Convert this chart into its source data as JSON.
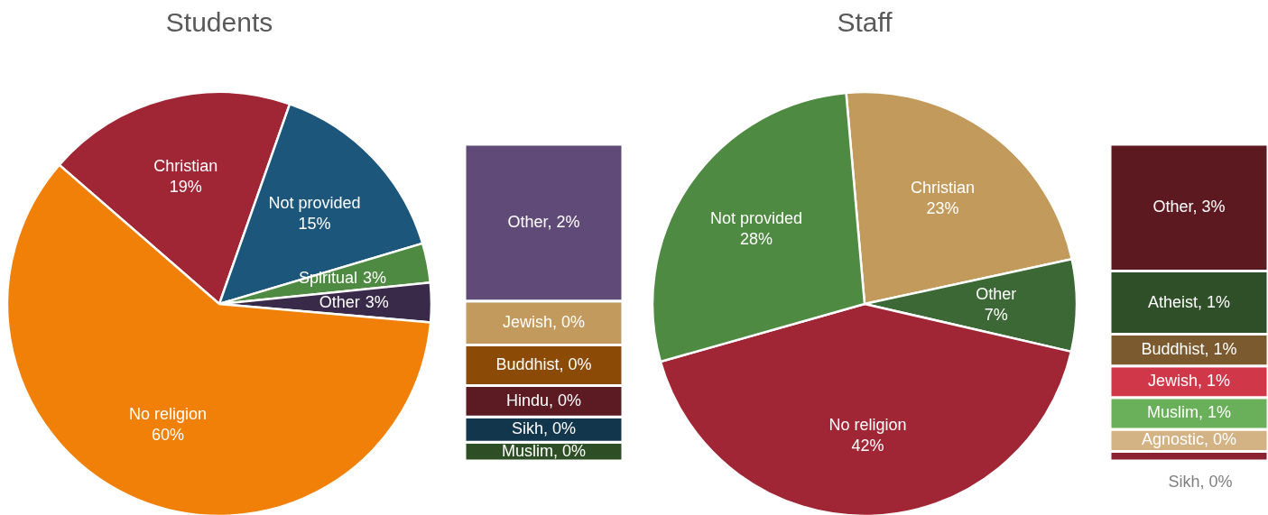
{
  "chart_data": [
    {
      "type": "pie",
      "title": "Students",
      "categories": [
        "Christian",
        "Not provided",
        "Spiritual",
        "Other",
        "No religion"
      ],
      "values": [
        19,
        15,
        3,
        3,
        60
      ],
      "colors": [
        "#a02535",
        "#1c567a",
        "#4e8a41",
        "#3a2a4a",
        "#f08008"
      ],
      "value_labels": [
        "19%",
        "15%",
        "3%",
        "3%",
        "60%"
      ]
    },
    {
      "type": "bar",
      "stacked": true,
      "categories": [
        null
      ],
      "series": [
        {
          "color": "#2e4f25",
          "values": [
            0.18
          ],
          "value_labels": [
            "Muslim, 0%"
          ]
        },
        {
          "color": "#12364c",
          "values": [
            0.24
          ],
          "value_labels": [
            "Sikh, 0%"
          ]
        },
        {
          "color": "#5c1a22",
          "values": [
            0.3
          ],
          "value_labels": [
            "Hindu, 0%"
          ]
        },
        {
          "color": "#8b4a06",
          "values": [
            0.39
          ],
          "value_labels": [
            "Buddhist, 0%"
          ]
        },
        {
          "color": "#c39a5e",
          "values": [
            0.42
          ],
          "value_labels": [
            "Jewish, 0%"
          ]
        },
        {
          "color": "#604a78",
          "values": [
            1.5
          ],
          "value_labels": [
            "Other, 2%"
          ]
        }
      ]
    },
    {
      "type": "pie",
      "title": "Staff",
      "categories": [
        "Christian",
        "Other",
        "No religion",
        "Not provided"
      ],
      "values": [
        23,
        7,
        42,
        28
      ],
      "colors": [
        "#c29a5b",
        "#3b6834",
        "#a02535",
        "#4e8a41"
      ],
      "value_labels": [
        "23%",
        "7%",
        "42%",
        "28%"
      ]
    },
    {
      "type": "bar",
      "stacked": true,
      "categories": [
        null
      ],
      "series": [
        {
          "color": "#8b2232",
          "values": [
            0.21
          ],
          "value_labels": [
            "Sikh, 0%"
          ]
        },
        {
          "color": "#d3b384",
          "values": [
            0.49
          ],
          "value_labels": [
            "Agnostic, 0%"
          ]
        },
        {
          "color": "#6aaf5a",
          "values": [
            0.7
          ],
          "value_labels": [
            "Muslim, 1%"
          ]
        },
        {
          "color": "#d0384a",
          "values": [
            0.7
          ],
          "value_labels": [
            "Jewish, 1%"
          ]
        },
        {
          "color": "#7a5a2e",
          "values": [
            0.7
          ],
          "value_labels": [
            "Buddhist, 1%"
          ]
        },
        {
          "color": "#2e4f28",
          "values": [
            1.4
          ],
          "value_labels": [
            "Atheist, 1%"
          ]
        },
        {
          "color": "#5c1a20",
          "values": [
            2.8
          ],
          "value_labels": [
            "Other, 3%"
          ]
        }
      ]
    }
  ]
}
